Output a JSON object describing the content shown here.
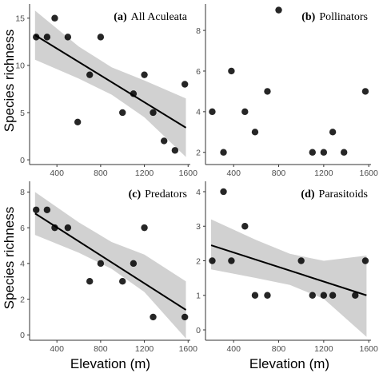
{
  "figure": {
    "ylabel": "Species richness",
    "xlabel": "Elevation (m)"
  },
  "chart_data": [
    {
      "id": "a",
      "type": "scatter",
      "letter": "(a)",
      "title": "All Aculeata",
      "xlim": [
        150,
        1620
      ],
      "ylim": [
        -0.5,
        16.5
      ],
      "xticks": [
        400,
        800,
        1200,
        1600
      ],
      "xtick_labels": [
        "400",
        "800",
        "1200",
        "1600"
      ],
      "yticks": [
        0,
        5,
        10,
        15
      ],
      "ytick_labels": [
        "0",
        "5",
        "10",
        "15"
      ],
      "points": [
        {
          "x": 210,
          "y": 13
        },
        {
          "x": 310,
          "y": 13
        },
        {
          "x": 380,
          "y": 15
        },
        {
          "x": 500,
          "y": 13
        },
        {
          "x": 590,
          "y": 4
        },
        {
          "x": 700,
          "y": 9
        },
        {
          "x": 800,
          "y": 13
        },
        {
          "x": 1000,
          "y": 5
        },
        {
          "x": 1100,
          "y": 7
        },
        {
          "x": 1200,
          "y": 9
        },
        {
          "x": 1280,
          "y": 5
        },
        {
          "x": 1380,
          "y": 2
        },
        {
          "x": 1480,
          "y": 1
        },
        {
          "x": 1570,
          "y": 8
        }
      ],
      "fit": {
        "x": [
          200,
          1580
        ],
        "y": [
          13.2,
          3.4
        ]
      },
      "ci": {
        "x": [
          200,
          600,
          900,
          1200,
          1580
        ],
        "lower": [
          10.6,
          8.6,
          6.9,
          4.5,
          0.3
        ],
        "upper": [
          15.8,
          12.0,
          9.8,
          8.4,
          6.5
        ]
      }
    },
    {
      "id": "b",
      "type": "scatter",
      "letter": "(b)",
      "title": "Pollinators",
      "xlim": [
        150,
        1620
      ],
      "ylim": [
        1.4,
        9.3
      ],
      "xticks": [
        400,
        800,
        1200,
        1600
      ],
      "xtick_labels": [
        "400",
        "800",
        "1200",
        "1600"
      ],
      "yticks": [
        2,
        4,
        6,
        8
      ],
      "ytick_labels": [
        "2",
        "4",
        "6",
        "8"
      ],
      "points": [
        {
          "x": 210,
          "y": 4
        },
        {
          "x": 310,
          "y": 2
        },
        {
          "x": 380,
          "y": 6
        },
        {
          "x": 500,
          "y": 4
        },
        {
          "x": 590,
          "y": 3
        },
        {
          "x": 700,
          "y": 5
        },
        {
          "x": 800,
          "y": 9
        },
        {
          "x": 1100,
          "y": 2
        },
        {
          "x": 1200,
          "y": 2
        },
        {
          "x": 1280,
          "y": 3
        },
        {
          "x": 1380,
          "y": 2
        },
        {
          "x": 1570,
          "y": 5
        }
      ]
    },
    {
      "id": "c",
      "type": "scatter",
      "letter": "(c)",
      "title": "Predators",
      "xlim": [
        150,
        1620
      ],
      "ylim": [
        -0.3,
        8.6
      ],
      "xticks": [
        400,
        800,
        1200,
        1600
      ],
      "xtick_labels": [
        "400",
        "800",
        "1200",
        "1600"
      ],
      "yticks": [
        0,
        2,
        4,
        6,
        8
      ],
      "ytick_labels": [
        "0",
        "2",
        "4",
        "6",
        "8"
      ],
      "points": [
        {
          "x": 210,
          "y": 7
        },
        {
          "x": 310,
          "y": 7
        },
        {
          "x": 380,
          "y": 6
        },
        {
          "x": 500,
          "y": 6
        },
        {
          "x": 700,
          "y": 3
        },
        {
          "x": 800,
          "y": 4
        },
        {
          "x": 1000,
          "y": 3
        },
        {
          "x": 1100,
          "y": 4
        },
        {
          "x": 1200,
          "y": 6
        },
        {
          "x": 1280,
          "y": 1
        },
        {
          "x": 1570,
          "y": 1
        }
      ],
      "fit": {
        "x": [
          200,
          1580
        ],
        "y": [
          6.8,
          1.4
        ]
      },
      "ci": {
        "x": [
          200,
          600,
          900,
          1200,
          1580
        ],
        "lower": [
          5.6,
          4.6,
          3.7,
          2.4,
          -0.2
        ],
        "upper": [
          8.0,
          6.3,
          5.2,
          4.5,
          3.0
        ]
      }
    },
    {
      "id": "d",
      "type": "scatter",
      "letter": "(d)",
      "title": "Parasitoids",
      "xlim": [
        150,
        1620
      ],
      "ylim": [
        -0.3,
        4.3
      ],
      "xticks": [
        400,
        800,
        1200,
        1600
      ],
      "xtick_labels": [
        "400",
        "800",
        "1200",
        "1600"
      ],
      "yticks": [
        0,
        1,
        2,
        3,
        4
      ],
      "ytick_labels": [
        "0",
        "1",
        "2",
        "3",
        "4"
      ],
      "points": [
        {
          "x": 210,
          "y": 2
        },
        {
          "x": 310,
          "y": 4
        },
        {
          "x": 380,
          "y": 2
        },
        {
          "x": 500,
          "y": 3
        },
        {
          "x": 590,
          "y": 1
        },
        {
          "x": 700,
          "y": 1
        },
        {
          "x": 1000,
          "y": 2
        },
        {
          "x": 1100,
          "y": 1
        },
        {
          "x": 1200,
          "y": 1
        },
        {
          "x": 1280,
          "y": 1
        },
        {
          "x": 1480,
          "y": 1
        },
        {
          "x": 1570,
          "y": 2
        }
      ],
      "fit": {
        "x": [
          200,
          1580
        ],
        "y": [
          2.45,
          1.0
        ]
      },
      "ci": {
        "x": [
          200,
          600,
          900,
          1200,
          1580
        ],
        "lower": [
          1.75,
          1.5,
          1.3,
          0.9,
          -0.2
        ],
        "upper": [
          3.2,
          2.6,
          2.2,
          2.0,
          2.15
        ]
      }
    }
  ]
}
